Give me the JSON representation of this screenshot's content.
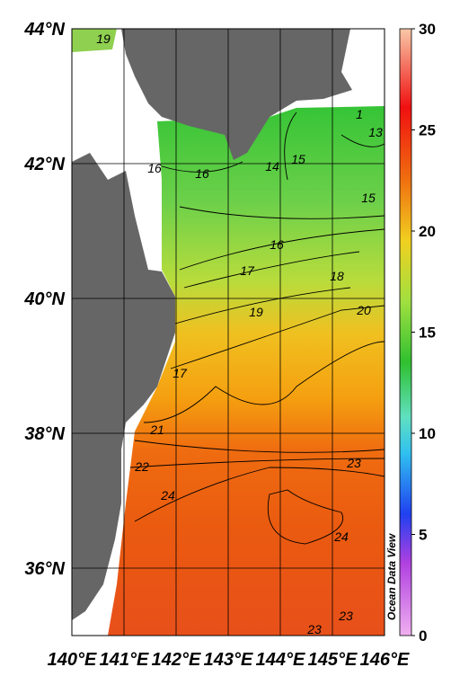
{
  "map": {
    "lat_labels": [
      "44°N",
      "42°N",
      "40°N",
      "38°N",
      "36°N"
    ],
    "lon_labels": [
      "140°E",
      "141°E",
      "142°E",
      "143°E",
      "144°E",
      "145°E",
      "146°E"
    ],
    "colorbar": {
      "range": [
        0,
        30
      ],
      "ticks": [
        0,
        5,
        10,
        15,
        20,
        25,
        30
      ]
    },
    "contour_labels": [
      "19",
      "16",
      "16",
      "14",
      "15",
      "1",
      "13",
      "15",
      "16",
      "17",
      "18",
      "19",
      "20",
      "17",
      "21",
      "22",
      "23",
      "24",
      "24",
      "23",
      "23"
    ],
    "watermark": "Ocean Data View"
  }
}
